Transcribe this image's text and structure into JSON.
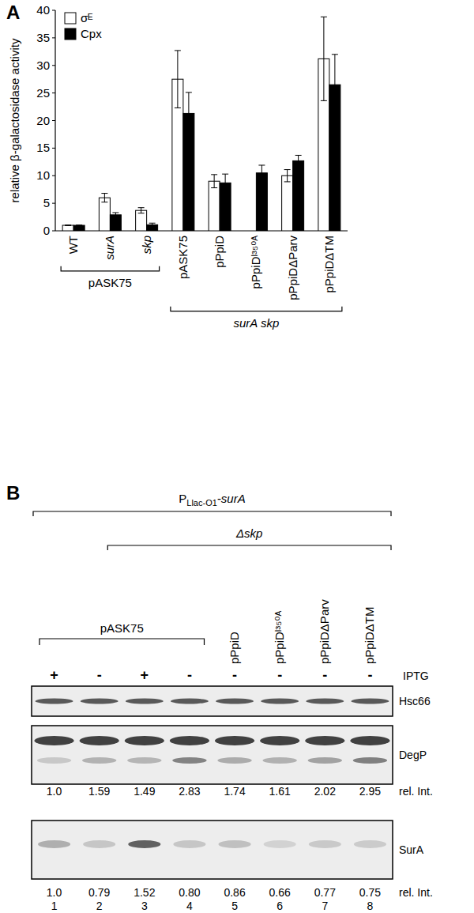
{
  "panels": [
    "A",
    "B"
  ],
  "chart_data": {
    "type": "bar",
    "y_label": "relative β-galactosidase activity",
    "categories": [
      "WT",
      "surA",
      "skp",
      "pASK75",
      "pPpiD",
      "pPpiDᴵ³⁵⁰ᴬ",
      "pPpiDΔParv",
      "pPpiDΔTM"
    ],
    "series": [
      {
        "name": "σᴱ",
        "color": "#ffffff",
        "values": [
          1.0,
          6.0,
          3.7,
          27.5,
          9.0,
          null,
          10.0,
          31.2
        ],
        "errors": [
          0.05,
          0.8,
          0.5,
          5.2,
          1.2,
          null,
          1.1,
          7.6
        ]
      },
      {
        "name": "Cpx",
        "color": "#000000",
        "values": [
          1.0,
          2.9,
          1.1,
          21.3,
          8.7,
          10.5,
          12.7,
          26.5
        ],
        "errors": [
          0.05,
          0.4,
          0.3,
          3.8,
          1.6,
          1.4,
          1.0,
          5.5
        ]
      }
    ],
    "groups": [
      {
        "label": "pASK75",
        "from": 0,
        "to": 2
      },
      {
        "label": "surA skp",
        "from": 3,
        "to": 7
      }
    ],
    "ylim": [
      0,
      40
    ],
    "yticks": [
      0,
      5,
      10,
      15,
      20,
      25,
      30,
      35,
      40
    ],
    "legend": "top-left",
    "grid": false
  },
  "blot": {
    "construct": {
      "main": "P",
      "sub": "Llac-O1",
      "suffix": "-surA",
      "lanes": [
        1,
        8
      ]
    },
    "deletion": {
      "label": "Δskp",
      "lanes": [
        3,
        8
      ]
    },
    "vector": {
      "label": "pASK75",
      "lanes": [
        1,
        4
      ]
    },
    "plasmids": [
      null,
      null,
      null,
      null,
      "pPpiD",
      "pPpiDᴵ³⁵⁰ᴬ",
      "pPpiDΔParv",
      "pPpiDΔTM"
    ],
    "iptg_label": "IPTG",
    "iptg": [
      "+",
      "-",
      "+",
      "-",
      "-",
      "-",
      "-",
      "-"
    ],
    "rel_int_label": "rel. Int.",
    "rows": [
      {
        "name": "Hsc66"
      },
      {
        "name": "DegP",
        "rel_int": [
          "1.0",
          "1.59",
          "1.49",
          "2.83",
          "1.74",
          "1.61",
          "2.02",
          "2.95"
        ]
      },
      {
        "name": "SurA",
        "rel_int": [
          "1.0",
          "0.79",
          "1.52",
          "0.80",
          "0.86",
          "0.66",
          "0.77",
          "0.75"
        ]
      }
    ],
    "lane_numbers": [
      1,
      2,
      3,
      4,
      5,
      6,
      7,
      8
    ]
  }
}
